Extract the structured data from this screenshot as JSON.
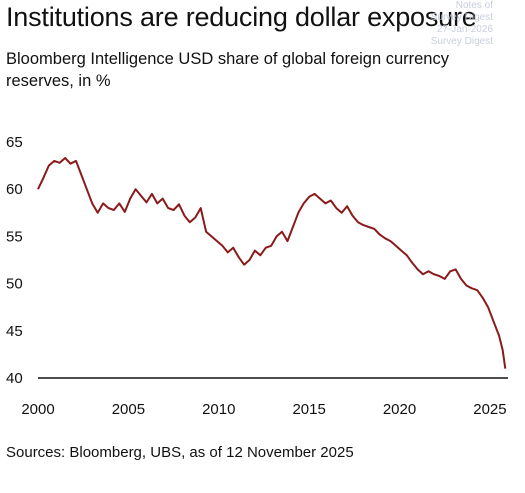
{
  "title": "Institutions are reducing dollar exposure",
  "subtitle": "Bloomberg Intelligence USD share of global foreign currency reserves, in %",
  "watermark": [
    "Notes of",
    "Survey Digest",
    "27-Jan-2026",
    "Survey Digest"
  ],
  "source": "Sources: Bloomberg, UBS, as of 12 November 2025",
  "colors": {
    "line": "#8b1a1a",
    "axis": "#111111"
  },
  "chart_data": {
    "type": "line",
    "title": "Institutions are reducing dollar exposure",
    "xlabel": "",
    "ylabel": "",
    "xlim": [
      2000,
      2026
    ],
    "ylim": [
      40,
      65
    ],
    "xticks": [
      "2000",
      "2005",
      "2010",
      "2015",
      "2020",
      "2025"
    ],
    "yticks": [
      "65",
      "60",
      "55",
      "50",
      "45",
      "40"
    ],
    "grid": false,
    "legend": "none",
    "series": [
      {
        "x": [
          2000.0,
          2000.3,
          2000.6,
          2000.9,
          2001.2,
          2001.5,
          2001.8,
          2002.1,
          2002.4,
          2002.7,
          2003.0,
          2003.3,
          2003.6,
          2003.9,
          2004.2,
          2004.5,
          2004.8,
          2005.1,
          2005.4,
          2005.7,
          2006.0,
          2006.3,
          2006.6,
          2006.9,
          2007.2,
          2007.5,
          2007.8,
          2008.1,
          2008.4,
          2008.7,
          2009.0,
          2009.3,
          2009.6,
          2009.9,
          2010.2,
          2010.5,
          2010.8,
          2011.1,
          2011.4,
          2011.7,
          2012.0,
          2012.3,
          2012.6,
          2012.9,
          2013.2,
          2013.5,
          2013.8,
          2014.1,
          2014.4,
          2014.7,
          2015.0,
          2015.3,
          2015.6,
          2015.9,
          2016.2,
          2016.5,
          2016.8,
          2017.1,
          2017.4,
          2017.7,
          2018.0,
          2018.3,
          2018.6,
          2018.9,
          2019.2,
          2019.5,
          2019.8,
          2020.1,
          2020.4,
          2020.7,
          2021.0,
          2021.3,
          2021.6,
          2021.9,
          2022.2,
          2022.5,
          2022.8,
          2023.1,
          2023.4,
          2023.7,
          2024.0,
          2024.3,
          2024.6,
          2024.9,
          2025.2,
          2025.5,
          2025.7,
          2025.85
        ],
        "values": [
          60.0,
          61.2,
          62.5,
          63.0,
          62.8,
          63.3,
          62.7,
          63.0,
          61.5,
          60.0,
          58.5,
          57.5,
          58.5,
          58.0,
          57.8,
          58.5,
          57.6,
          59.0,
          60.0,
          59.3,
          58.6,
          59.5,
          58.5,
          59.0,
          58.0,
          57.8,
          58.4,
          57.2,
          56.5,
          57.0,
          58.0,
          55.5,
          55.0,
          54.5,
          54.0,
          53.3,
          53.8,
          52.8,
          52.0,
          52.5,
          53.5,
          53.0,
          53.8,
          54.0,
          55.0,
          55.5,
          54.5,
          56.0,
          57.5,
          58.5,
          59.2,
          59.5,
          59.0,
          58.5,
          58.8,
          58.0,
          57.5,
          58.2,
          57.2,
          56.5,
          56.2,
          56.0,
          55.8,
          55.2,
          54.8,
          54.5,
          54.0,
          53.5,
          53.0,
          52.2,
          51.5,
          51.0,
          51.3,
          51.0,
          50.8,
          50.5,
          51.3,
          51.5,
          50.5,
          49.8,
          49.5,
          49.3,
          48.5,
          47.5,
          46.0,
          44.5,
          43.0,
          41.0
        ]
      }
    ]
  }
}
